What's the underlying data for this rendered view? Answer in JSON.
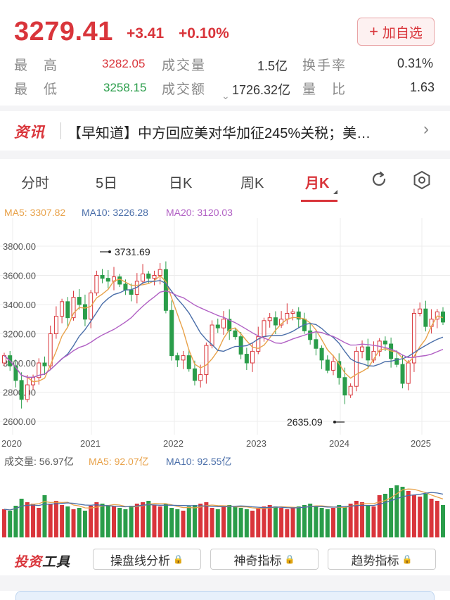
{
  "quote": {
    "price": "3279.41",
    "change": "+3.41",
    "change_pct": "+0.10%",
    "watch_button": "加自选",
    "stats": [
      {
        "label": "最　高",
        "value": "3282.05",
        "label2": "成交量",
        "value2": "1.5亿",
        "label3": "换手率",
        "value3": "0.31%"
      },
      {
        "label": "最　低",
        "value": "3258.15",
        "label2": "成交额",
        "value2": "1726.32亿",
        "label3": "量　比",
        "value3": "1.63"
      }
    ]
  },
  "news": {
    "tag": "资讯",
    "headline": "【早知道】中方回应美对华加征245%关税；美…"
  },
  "tabs": [
    {
      "label": "分时"
    },
    {
      "label": "5日"
    },
    {
      "label": "日K"
    },
    {
      "label": "周K"
    },
    {
      "label": "月K"
    }
  ],
  "ma_legend": {
    "ma5": "MA5: 3307.82",
    "ma10": "MA10: 3226.28",
    "ma20": "MA20: 3120.03"
  },
  "chart_data": {
    "type": "candlestick",
    "y_ticks": [
      "3800.00",
      "3600.00",
      "3400.00",
      "3200.00",
      "3000.00",
      "2800.00",
      "2600.00"
    ],
    "x_ticks": [
      "2020",
      "2021",
      "2022",
      "2023",
      "2024",
      "2025"
    ],
    "high_marker": "3731.69",
    "low_marker": "2635.09",
    "ylim": [
      2560,
      3860
    ],
    "grid": true
  },
  "volume": {
    "label": "成交量: 56.97亿",
    "ma5": "MA5: 92.07亿",
    "ma10": "MA10: 92.55亿"
  },
  "tools": {
    "title_red": "投资",
    "title_black": "工具",
    "buttons": [
      "操盘线分析",
      "神奇指标",
      "趋势指标"
    ]
  },
  "colors": {
    "up": "#d9353b",
    "down": "#2a9d4a",
    "ma5": "#e8a24a",
    "ma10": "#4a6ea9",
    "ma20": "#b160c4"
  }
}
